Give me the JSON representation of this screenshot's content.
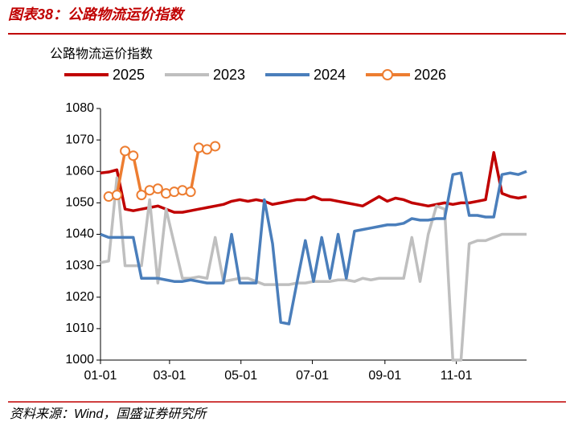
{
  "figure_title": "图表38：公路物流运价指数",
  "source": "资料来源：Wind，国盛证券研究所",
  "chart_data": {
    "type": "line",
    "title": "公路物流运价指数",
    "x": [
      "01-01",
      "01-08",
      "01-15",
      "01-22",
      "01-29",
      "02-05",
      "02-12",
      "02-19",
      "02-26",
      "03-05",
      "03-12",
      "03-19",
      "03-26",
      "04-02",
      "04-09",
      "04-16",
      "04-23",
      "04-30",
      "05-07",
      "05-14",
      "05-21",
      "05-28",
      "06-04",
      "06-11",
      "06-18",
      "06-25",
      "07-02",
      "07-09",
      "07-16",
      "07-23",
      "07-30",
      "08-06",
      "08-13",
      "08-20",
      "08-27",
      "09-03",
      "09-10",
      "09-17",
      "09-24",
      "10-01",
      "10-08",
      "10-15",
      "10-22",
      "10-29",
      "11-05",
      "11-12",
      "11-19",
      "11-26",
      "12-03",
      "12-10",
      "12-17",
      "12-24",
      "12-31"
    ],
    "xlim": [
      "01-01",
      "12-31"
    ],
    "xticks": [
      "01-01",
      "03-01",
      "05-01",
      "07-01",
      "09-01",
      "11-01"
    ],
    "ylim": [
      1000,
      1080
    ],
    "yticks": [
      1000,
      1010,
      1020,
      1030,
      1040,
      1050,
      1060,
      1070,
      1080
    ],
    "series": [
      {
        "name": "2025",
        "color": "#c00000",
        "values": [
          1059.5,
          1059.8,
          1060.5,
          1048,
          1047.5,
          1048,
          1048.5,
          1049,
          1048,
          1047,
          1047,
          1047.5,
          1048,
          1048.5,
          1049,
          1049.5,
          1050.5,
          1051,
          1050.5,
          1051,
          1050.5,
          1049.5,
          1050,
          1050.5,
          1051,
          1051,
          1052,
          1051,
          1051,
          1050.5,
          1050,
          1049.5,
          1049,
          1050.5,
          1052,
          1050.5,
          1051.5,
          1051,
          1050,
          1049.5,
          1049,
          1049.5,
          1050,
          1049.5,
          1050,
          1050,
          1050.5,
          1051,
          1066,
          1053,
          1052,
          1051.5,
          1052
        ]
      },
      {
        "name": "2023",
        "color": "#bfbfbf",
        "values": [
          1031,
          1031.5,
          1058,
          1030,
          1030,
          1030,
          1051,
          1024.5,
          1048,
          1037,
          1026,
          1026,
          1026.5,
          1026,
          1039,
          1025,
          1025.5,
          1026,
          1026,
          1025,
          1024,
          1024,
          1024,
          1024,
          1024.5,
          1024.5,
          1025,
          1025,
          1025,
          1025.5,
          1025.5,
          1025,
          1026,
          1025.5,
          1026,
          1026,
          1026,
          1026,
          1039,
          1025,
          1040,
          1049,
          1048,
          1000,
          1000,
          1037,
          1038,
          1038,
          1039,
          1040,
          1040,
          1040,
          1040
        ]
      },
      {
        "name": "2024",
        "color": "#4a7ebb",
        "values": [
          1040,
          1039,
          1039,
          1039,
          1039,
          1026,
          1026,
          1026,
          1025.5,
          1025,
          1025,
          1025.5,
          1025,
          1024.5,
          1024.5,
          1024.5,
          1040,
          1024.5,
          1024.5,
          1024.5,
          1051,
          1037,
          1012,
          1011.5,
          1025,
          1038,
          1025,
          1039,
          1026,
          1040,
          1026,
          1041,
          1041.5,
          1042,
          1042.5,
          1043,
          1043,
          1043.5,
          1045,
          1044.5,
          1044.5,
          1045,
          1045,
          1059,
          1059.5,
          1046,
          1046,
          1045.5,
          1045.5,
          1059,
          1059.5,
          1059,
          1060
        ]
      },
      {
        "name": "2026",
        "color": "#ed7d31",
        "marker": true,
        "values": [
          null,
          1052,
          1052.5,
          1066.5,
          1065,
          1052.5,
          1054,
          1054.5,
          1053,
          1053.5,
          1054,
          1053.5,
          1067.5,
          1067,
          1068,
          null,
          null,
          null,
          null,
          null,
          null,
          null,
          null,
          null,
          null,
          null,
          null,
          null,
          null,
          null,
          null,
          null,
          null,
          null,
          null,
          null,
          null,
          null,
          null,
          null,
          null,
          null,
          null,
          null,
          null,
          null,
          null,
          null,
          null,
          null,
          null,
          null,
          null
        ]
      }
    ]
  }
}
